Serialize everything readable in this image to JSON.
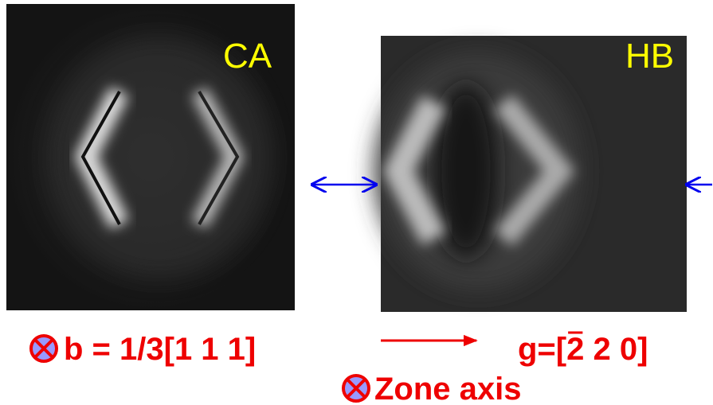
{
  "panels": [
    {
      "label": "CA"
    },
    {
      "label": "HB"
    }
  ],
  "burgers_vector": "b = 1/3[1 1 1]",
  "g_vector": {
    "prefix": "g=[",
    "barred": "2",
    "rest": " 2 0]"
  },
  "zone_axis": "Zone axis"
}
